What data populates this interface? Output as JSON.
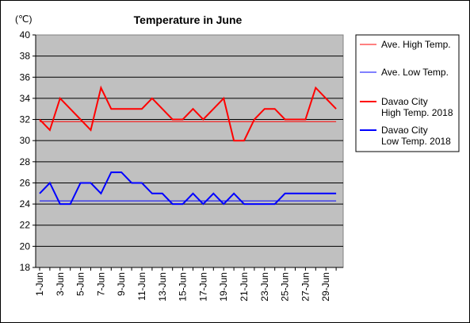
{
  "chart_data": {
    "type": "line",
    "title": "Temperature in June",
    "unit_label": "(℃)",
    "ylim": [
      18,
      40
    ],
    "y_ticks": [
      18,
      20,
      22,
      24,
      26,
      28,
      30,
      32,
      34,
      36,
      38,
      40
    ],
    "grid": true,
    "legend_position": "right",
    "days": [
      1,
      2,
      3,
      4,
      5,
      6,
      7,
      8,
      9,
      10,
      11,
      12,
      13,
      14,
      15,
      16,
      17,
      18,
      19,
      20,
      21,
      22,
      23,
      24,
      25,
      26,
      27,
      28,
      29,
      30
    ],
    "x_tick_labels": [
      "1-Jun",
      "3-Jun",
      "5-Jun",
      "7-Jun",
      "9-Jun",
      "11-Jun",
      "13-Jun",
      "15-Jun",
      "17-Jun",
      "19-Jun",
      "21-Jun",
      "23-Jun",
      "25-Jun",
      "27-Jun",
      "29-Jun"
    ],
    "series": [
      {
        "name": "Ave. High Temp.",
        "color": "#ff0000",
        "width": 1,
        "values": [
          31.8,
          31.8,
          31.8,
          31.8,
          31.8,
          31.8,
          31.8,
          31.8,
          31.8,
          31.8,
          31.8,
          31.8,
          31.8,
          31.8,
          31.8,
          31.8,
          31.8,
          31.8,
          31.8,
          31.8,
          31.8,
          31.8,
          31.8,
          31.8,
          31.8,
          31.8,
          31.8,
          31.8,
          31.8,
          31.8
        ]
      },
      {
        "name": "Ave. Low Temp.",
        "color": "#0000ff",
        "width": 1,
        "values": [
          24.3,
          24.3,
          24.3,
          24.3,
          24.3,
          24.3,
          24.3,
          24.3,
          24.3,
          24.3,
          24.3,
          24.3,
          24.3,
          24.3,
          24.3,
          24.3,
          24.3,
          24.3,
          24.3,
          24.3,
          24.3,
          24.3,
          24.3,
          24.3,
          24.3,
          24.3,
          24.3,
          24.3,
          24.3,
          24.3
        ]
      },
      {
        "name": "Davao City High Temp. 2018",
        "legend_lines": [
          "Davao City",
          "High Temp. 2018"
        ],
        "color": "#ff0000",
        "width": 2,
        "values": [
          32,
          31,
          34,
          33,
          32,
          31,
          35,
          33,
          33,
          33,
          33,
          34,
          33,
          32,
          32,
          33,
          32,
          33,
          34,
          30,
          30,
          32,
          33,
          33,
          32,
          32,
          32,
          35,
          34,
          33
        ]
      },
      {
        "name": "Davao City Low Temp. 2018",
        "legend_lines": [
          "Davao City",
          "Low Temp. 2018"
        ],
        "color": "#0000ff",
        "width": 2,
        "values": [
          25,
          26,
          24,
          24,
          26,
          26,
          25,
          27,
          27,
          26,
          26,
          25,
          25,
          24,
          24,
          25,
          24,
          25,
          24,
          25,
          24,
          24,
          24,
          24,
          25,
          25,
          25,
          25,
          25,
          25
        ]
      }
    ]
  }
}
